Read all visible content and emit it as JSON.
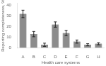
{
  "chart_data": {
    "type": "bar",
    "categories": [
      "A",
      "B",
      "C",
      "D",
      "E",
      "F",
      "G",
      "H"
    ],
    "values": [
      32,
      13,
      3,
      22,
      14,
      6,
      3,
      4
    ],
    "errors": [
      3.5,
      2.5,
      1.5,
      2.5,
      2.5,
      1.5,
      1.0,
      1.0
    ],
    "color": "#8c8c8c",
    "xlabel": "Health care systems",
    "ylabel": "Reporting completeness, %",
    "ylim": [
      0,
      42
    ],
    "yticks": [
      0,
      10,
      20,
      30,
      40
    ],
    "grid": false
  }
}
